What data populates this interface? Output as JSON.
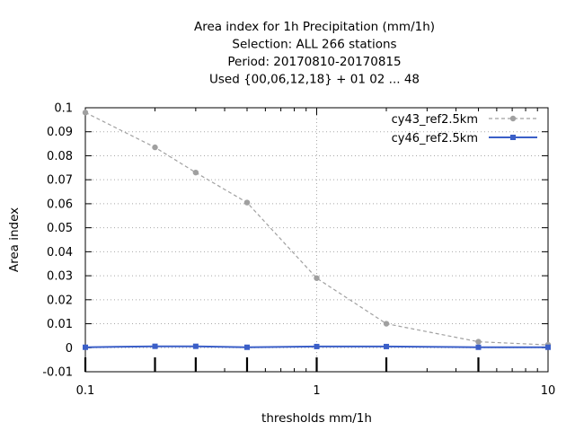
{
  "chart_data": {
    "type": "line",
    "title_lines": [
      "Area index  for 1h Precipitation (mm/1h)",
      "Selection: ALL     266 stations",
      "Period: 20170810-20170815",
      "Used {00,06,12,18} + 01 02 ... 48"
    ],
    "xlabel": "thresholds mm/1h",
    "ylabel": "Area index",
    "x_scale": "log",
    "xlim": [
      0.1,
      10
    ],
    "ylim": [
      -0.01,
      0.1
    ],
    "x_ticks": [
      0.1,
      1,
      10
    ],
    "x_tick_labels": [
      "0.1",
      "1",
      "10"
    ],
    "y_ticks": [
      -0.01,
      0,
      0.01,
      0.02,
      0.03,
      0.04,
      0.05,
      0.06,
      0.07,
      0.08,
      0.09,
      0.1
    ],
    "y_tick_labels": [
      "-0.01",
      "0",
      "0.01",
      "0.02",
      "0.03",
      "0.04",
      "0.05",
      "0.06",
      "0.07",
      "0.08",
      "0.09",
      "0.1"
    ],
    "grid": true,
    "legend_position": "top-right",
    "x": [
      0.1,
      0.2,
      0.3,
      0.5,
      1,
      2,
      5,
      10
    ],
    "series": [
      {
        "name": "cy43_ref2.5km",
        "color": "#a0a0a0",
        "style": "dashed",
        "marker": "circle",
        "values": [
          0.098,
          0.0835,
          0.073,
          0.0605,
          0.029,
          0.01,
          0.0025,
          0.0012
        ]
      },
      {
        "name": "cy46_ref2.5km",
        "color": "#3b5fc8",
        "style": "solid",
        "marker": "square",
        "values": [
          0.0002,
          0.0006,
          0.0006,
          0.0002,
          0.0005,
          0.0005,
          0.0002,
          0.0002
        ]
      }
    ]
  }
}
